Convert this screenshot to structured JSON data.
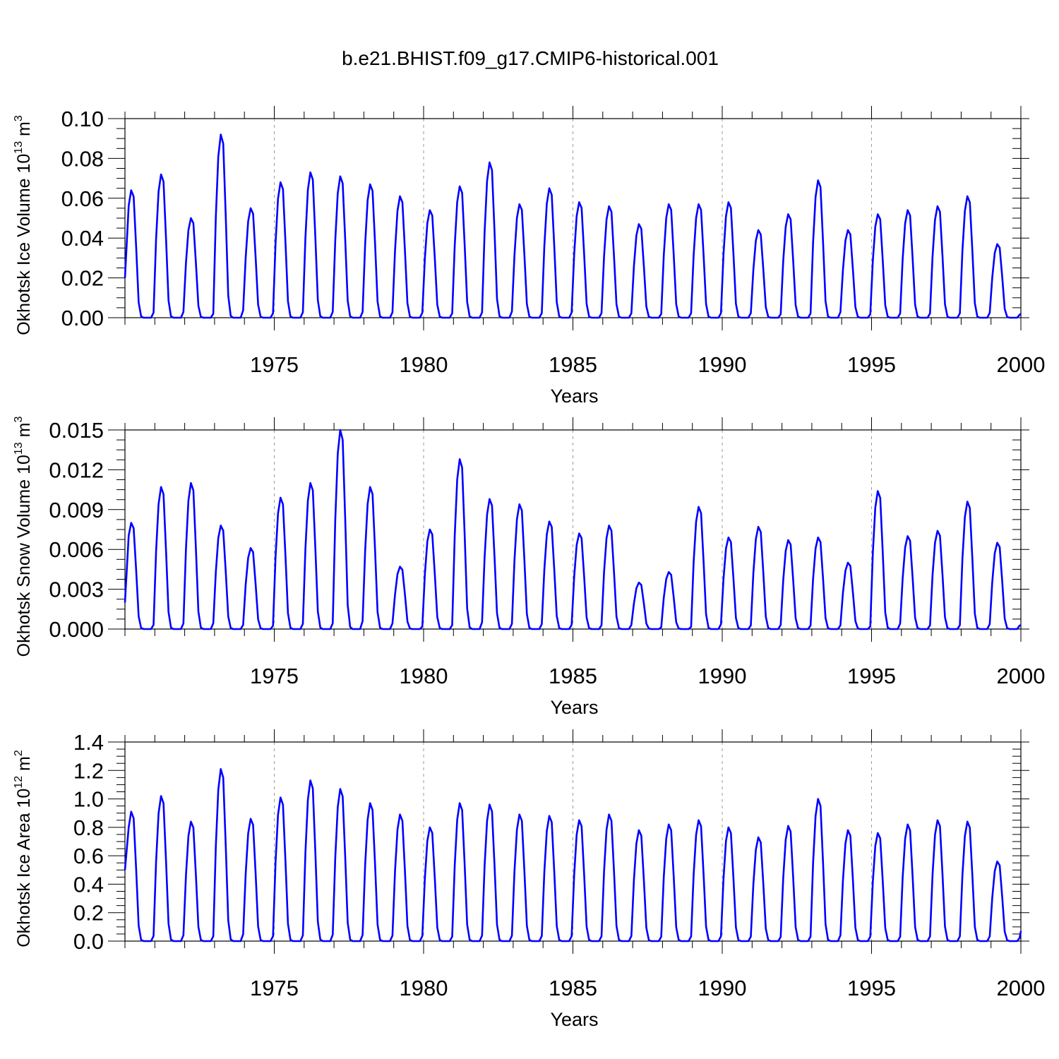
{
  "title": "b.e21.BHIST.f09_g17.CMIP6-historical.001",
  "colors": {
    "series": "#0000ff",
    "grid": "#999999",
    "frame": "#000000"
  },
  "chart_data": [
    {
      "type": "line",
      "ylabel_main": "Okhotsk Ice Volume 10",
      "ylabel_exp": "13",
      "ylabel_unit": "m",
      "ylabel_unit_exp": "3",
      "xlabel": "Years",
      "xlim": [
        1970,
        2000
      ],
      "ylim": [
        0,
        0.1
      ],
      "y_ticks": [
        0,
        0.02,
        0.04,
        0.06,
        0.08,
        0.1
      ],
      "y_tick_labels": [
        "0.00",
        "0.02",
        "0.04",
        "0.06",
        "0.08",
        "0.10"
      ],
      "x_ticks": [
        1975,
        1980,
        1985,
        1990,
        1995,
        2000
      ],
      "x_tick_labels": [
        "1975",
        "1980",
        "1985",
        "1990",
        "1995",
        "2000"
      ],
      "grid": "dashed vertical at 1975, 1980, 1985, 1990, 1995",
      "peaks": [
        0.064,
        0.072,
        0.05,
        0.092,
        0.055,
        0.068,
        0.073,
        0.071,
        0.067,
        0.061,
        0.054,
        0.066,
        0.078,
        0.057,
        0.065,
        0.058,
        0.056,
        0.047,
        0.057,
        0.057,
        0.058,
        0.044,
        0.052,
        0.069,
        0.044,
        0.052,
        0.054,
        0.056,
        0.061,
        0.037
      ],
      "start_value": 0.02,
      "end_value": 0.002
    },
    {
      "type": "line",
      "ylabel_main": "Okhotsk Snow Volume 10",
      "ylabel_exp": "13",
      "ylabel_unit": "m",
      "ylabel_unit_exp": "3",
      "xlabel": "Years",
      "xlim": [
        1970,
        2000
      ],
      "ylim": [
        0,
        0.015
      ],
      "y_ticks": [
        0,
        0.003,
        0.006,
        0.009,
        0.012,
        0.015
      ],
      "y_tick_labels": [
        "0.000",
        "0.003",
        "0.006",
        "0.009",
        "0.012",
        "0.015"
      ],
      "x_ticks": [
        1975,
        1980,
        1985,
        1990,
        1995,
        2000
      ],
      "x_tick_labels": [
        "1975",
        "1980",
        "1985",
        "1990",
        "1995",
        "2000"
      ],
      "grid": "dashed vertical at 1975, 1980, 1985, 1990, 1995",
      "peaks": [
        0.008,
        0.0107,
        0.011,
        0.0078,
        0.0061,
        0.0099,
        0.011,
        0.015,
        0.0107,
        0.0047,
        0.0075,
        0.0128,
        0.0098,
        0.0094,
        0.0081,
        0.0072,
        0.0078,
        0.0035,
        0.0043,
        0.0092,
        0.0069,
        0.0077,
        0.0067,
        0.0069,
        0.005,
        0.0104,
        0.007,
        0.0074,
        0.0096,
        0.0065
      ],
      "start_value": 0.002,
      "end_value": 0.0003
    },
    {
      "type": "line",
      "ylabel_main": "Okhotsk Ice Area 10",
      "ylabel_exp": "12",
      "ylabel_unit": "m",
      "ylabel_unit_exp": "2",
      "xlabel": "Years",
      "xlim": [
        1970,
        2000
      ],
      "ylim": [
        0,
        1.4
      ],
      "y_ticks": [
        0,
        0.2,
        0.4,
        0.6,
        0.8,
        1.0,
        1.2,
        1.4
      ],
      "y_tick_labels": [
        "0.0",
        "0.2",
        "0.4",
        "0.6",
        "0.8",
        "1.0",
        "1.2",
        "1.4"
      ],
      "x_ticks": [
        1975,
        1980,
        1985,
        1990,
        1995,
        2000
      ],
      "x_tick_labels": [
        "1975",
        "1980",
        "1985",
        "1990",
        "1995",
        "2000"
      ],
      "grid": "dashed vertical at 1975, 1980, 1985, 1990, 1995",
      "peaks": [
        0.91,
        1.02,
        0.84,
        1.21,
        0.86,
        1.01,
        1.13,
        1.07,
        0.97,
        0.89,
        0.8,
        0.97,
        0.96,
        0.89,
        0.88,
        0.85,
        0.89,
        0.78,
        0.82,
        0.85,
        0.8,
        0.73,
        0.81,
        1.0,
        0.78,
        0.76,
        0.82,
        0.85,
        0.84,
        0.56
      ],
      "start_value": 0.5,
      "end_value": 0.07
    }
  ]
}
